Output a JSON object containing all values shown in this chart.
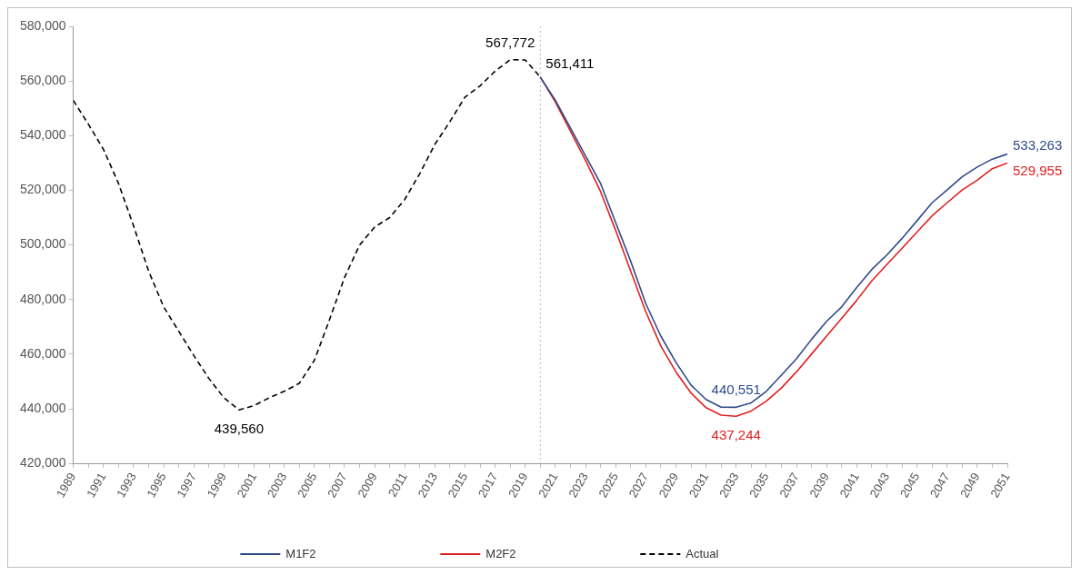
{
  "chart_data": {
    "type": "line",
    "legend": "bottom",
    "grid": false,
    "marker": "none",
    "xlim": [
      1989,
      2051
    ],
    "xticks": [
      {
        "value": 1989,
        "label": "1989"
      },
      {
        "value": 1990,
        "label": null
      },
      {
        "value": 1991,
        "label": "1991"
      },
      {
        "value": 1992,
        "label": null
      },
      {
        "value": 1993,
        "label": "1993"
      },
      {
        "value": 1994,
        "label": null
      },
      {
        "value": 1995,
        "label": "1995"
      },
      {
        "value": 1996,
        "label": null
      },
      {
        "value": 1997,
        "label": "1997"
      },
      {
        "value": 1998,
        "label": null
      },
      {
        "value": 1999,
        "label": "1999"
      },
      {
        "value": 2000,
        "label": null
      },
      {
        "value": 2001,
        "label": "2001"
      },
      {
        "value": 2002,
        "label": null
      },
      {
        "value": 2003,
        "label": "2003"
      },
      {
        "value": 2004,
        "label": null
      },
      {
        "value": 2005,
        "label": "2005"
      },
      {
        "value": 2006,
        "label": null
      },
      {
        "value": 2007,
        "label": "2007"
      },
      {
        "value": 2008,
        "label": null
      },
      {
        "value": 2009,
        "label": "2009"
      },
      {
        "value": 2010,
        "label": null
      },
      {
        "value": 2011,
        "label": "2011"
      },
      {
        "value": 2012,
        "label": null
      },
      {
        "value": 2013,
        "label": "2013"
      },
      {
        "value": 2014,
        "label": null
      },
      {
        "value": 2015,
        "label": "2015"
      },
      {
        "value": 2016,
        "label": null
      },
      {
        "value": 2017,
        "label": "2017"
      },
      {
        "value": 2018,
        "label": null
      },
      {
        "value": 2019,
        "label": "2019"
      },
      {
        "value": 2020,
        "label": null
      },
      {
        "value": 2021,
        "label": "2021"
      },
      {
        "value": 2022,
        "label": null
      },
      {
        "value": 2023,
        "label": "2023"
      },
      {
        "value": 2024,
        "label": null
      },
      {
        "value": 2025,
        "label": "2025"
      },
      {
        "value": 2026,
        "label": null
      },
      {
        "value": 2027,
        "label": "2027"
      },
      {
        "value": 2028,
        "label": null
      },
      {
        "value": 2029,
        "label": "2029"
      },
      {
        "value": 2030,
        "label": null
      },
      {
        "value": 2031,
        "label": "2031"
      },
      {
        "value": 2032,
        "label": null
      },
      {
        "value": 2033,
        "label": "2033"
      },
      {
        "value": 2034,
        "label": null
      },
      {
        "value": 2035,
        "label": "2035"
      },
      {
        "value": 2036,
        "label": null
      },
      {
        "value": 2037,
        "label": "2037"
      },
      {
        "value": 2038,
        "label": null
      },
      {
        "value": 2039,
        "label": "2039"
      },
      {
        "value": 2040,
        "label": null
      },
      {
        "value": 2041,
        "label": "2041"
      },
      {
        "value": 2042,
        "label": null
      },
      {
        "value": 2043,
        "label": "2043"
      },
      {
        "value": 2044,
        "label": null
      },
      {
        "value": 2045,
        "label": "2045"
      },
      {
        "value": 2046,
        "label": null
      },
      {
        "value": 2047,
        "label": "2047"
      },
      {
        "value": 2048,
        "label": null
      },
      {
        "value": 2049,
        "label": "2049"
      },
      {
        "value": 2050,
        "label": null
      },
      {
        "value": 2051,
        "label": "2051"
      }
    ],
    "ylim": [
      420000,
      580000
    ],
    "yticks": [
      {
        "value": 420000,
        "label": "420,000"
      },
      {
        "value": 440000,
        "label": "440,000"
      },
      {
        "value": 460000,
        "label": "460,000"
      },
      {
        "value": 480000,
        "label": "480,000"
      },
      {
        "value": 500000,
        "label": "500,000"
      },
      {
        "value": 520000,
        "label": "520,000"
      },
      {
        "value": 540000,
        "label": "540,000"
      },
      {
        "value": 560000,
        "label": "560,000"
      },
      {
        "value": 580000,
        "label": "580,000"
      }
    ],
    "ref_lines": [
      {
        "axis": "x",
        "value": 2020,
        "color": "#9dc3e6",
        "line_style": "dotted"
      }
    ],
    "series": [
      {
        "name": "M1F2",
        "color": "#2f4b8c",
        "line_style": "solid",
        "x": [
          2020,
          2021,
          2022,
          2023,
          2024,
          2025,
          2026,
          2027,
          2028,
          2029,
          2030,
          2031,
          2032,
          2033,
          2034,
          2035,
          2036,
          2037,
          2038,
          2039,
          2040,
          2041,
          2042,
          2043,
          2044,
          2045,
          2046,
          2047,
          2048,
          2049,
          2050,
          2051
        ],
        "values": [
          561411,
          552900,
          542800,
          532600,
          522500,
          508200,
          494000,
          478500,
          466600,
          457000,
          448700,
          443400,
          440600,
          440551,
          442200,
          446400,
          452300,
          458300,
          465400,
          472000,
          477300,
          484400,
          491000,
          496300,
          502300,
          508800,
          515400,
          520100,
          524900,
          528500,
          531400,
          533263
        ],
        "value_labels": [
          null,
          null,
          null,
          null,
          null,
          null,
          null,
          null,
          null,
          null,
          null,
          null,
          null,
          "440,551",
          null,
          null,
          null,
          null,
          null,
          null,
          null,
          null,
          null,
          null,
          null,
          null,
          null,
          null,
          null,
          null,
          null,
          "533,263"
        ]
      },
      {
        "name": "M2F2",
        "color": "#e02020",
        "line_style": "solid",
        "x": [
          2020,
          2021,
          2022,
          2023,
          2024,
          2025,
          2026,
          2027,
          2028,
          2029,
          2030,
          2031,
          2032,
          2033,
          2034,
          2035,
          2036,
          2037,
          2038,
          2039,
          2040,
          2041,
          2042,
          2043,
          2044,
          2045,
          2046,
          2047,
          2048,
          2049,
          2050,
          2051
        ],
        "values": [
          561411,
          552300,
          541600,
          530900,
          519500,
          505300,
          490400,
          475500,
          463000,
          453500,
          445800,
          440400,
          437700,
          437244,
          439200,
          442800,
          447600,
          453500,
          460000,
          466600,
          473100,
          479700,
          486800,
          492800,
          498700,
          504700,
          510600,
          515400,
          520100,
          523700,
          527900,
          529955
        ],
        "value_labels": [
          null,
          null,
          null,
          null,
          null,
          null,
          null,
          null,
          null,
          null,
          null,
          null,
          null,
          "437,244",
          null,
          null,
          null,
          null,
          null,
          null,
          null,
          null,
          null,
          null,
          null,
          null,
          null,
          null,
          null,
          null,
          null,
          "529,955"
        ]
      },
      {
        "name": "Actual",
        "color": "#000000",
        "line_style": "dashed",
        "x": [
          1989,
          1990,
          1991,
          1992,
          1993,
          1994,
          1995,
          1996,
          1997,
          1998,
          1999,
          2000,
          2001,
          2002,
          2003,
          2004,
          2005,
          2006,
          2007,
          2008,
          2009,
          2010,
          2011,
          2012,
          2013,
          2014,
          2015,
          2016,
          2017,
          2018,
          2019,
          2020
        ],
        "values": [
          552900,
          544200,
          535000,
          522500,
          507000,
          490400,
          477300,
          468400,
          459500,
          451100,
          444000,
          439560,
          441200,
          444000,
          446400,
          449300,
          457700,
          472500,
          488000,
          499900,
          506500,
          510000,
          516600,
          526100,
          536800,
          545100,
          554100,
          558200,
          563600,
          567772,
          567700,
          561411
        ],
        "value_labels": [
          null,
          null,
          null,
          null,
          null,
          null,
          null,
          null,
          null,
          null,
          null,
          "439,560",
          null,
          null,
          null,
          null,
          null,
          null,
          null,
          null,
          null,
          null,
          null,
          null,
          null,
          null,
          null,
          null,
          null,
          "567,772",
          null,
          "561,411"
        ]
      }
    ]
  }
}
